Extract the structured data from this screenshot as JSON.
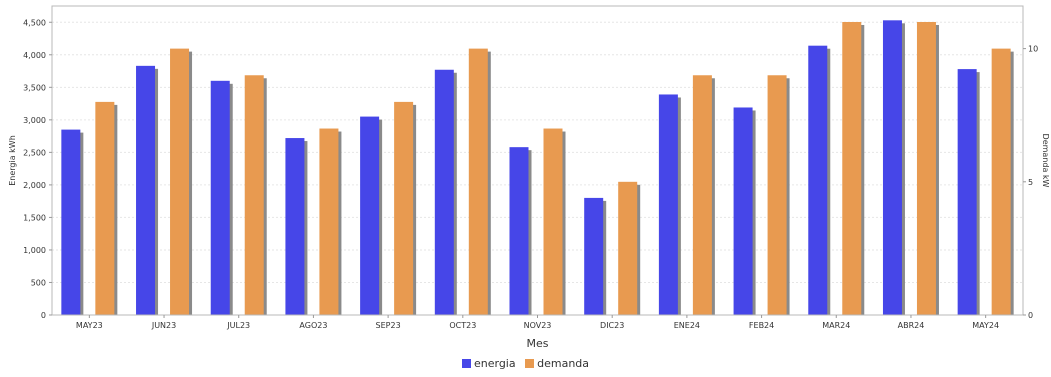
{
  "chart_data": {
    "type": "bar",
    "xlabel": "Mes",
    "ylabel_left": "Energia kWh",
    "ylabel_right": "Demanda kW",
    "categories": [
      "MAY23",
      "JUN23",
      "JUL23",
      "AGO23",
      "SEP23",
      "OCT23",
      "NOV23",
      "DIC23",
      "ENE24",
      "FEB24",
      "MAR24",
      "ABR24",
      "MAY24"
    ],
    "series": [
      {
        "name": "energia",
        "axis": "left",
        "color": "#4646e8",
        "values": [
          2850,
          3830,
          3600,
          2720,
          3050,
          3770,
          2580,
          1800,
          3390,
          3190,
          4140,
          4530,
          3780
        ]
      },
      {
        "name": "demanda",
        "axis": "right",
        "color": "#e89a50",
        "values": [
          8,
          10,
          9,
          7,
          8,
          10,
          7,
          5,
          9,
          9,
          11,
          11,
          10
        ]
      }
    ],
    "ylim_left": [
      0,
      4750
    ],
    "yticks_left": [
      "0",
      "500",
      "1,000",
      "1,500",
      "2,000",
      "2,500",
      "3,000",
      "3,500",
      "4,000",
      "4,500"
    ],
    "ylim_right": [
      0,
      11.6
    ],
    "yticks_right": [
      "0",
      "5",
      "10"
    ],
    "grid": true,
    "legend_position": "bottom-center"
  },
  "legend": {
    "energia": "energia",
    "demanda": "demanda"
  }
}
